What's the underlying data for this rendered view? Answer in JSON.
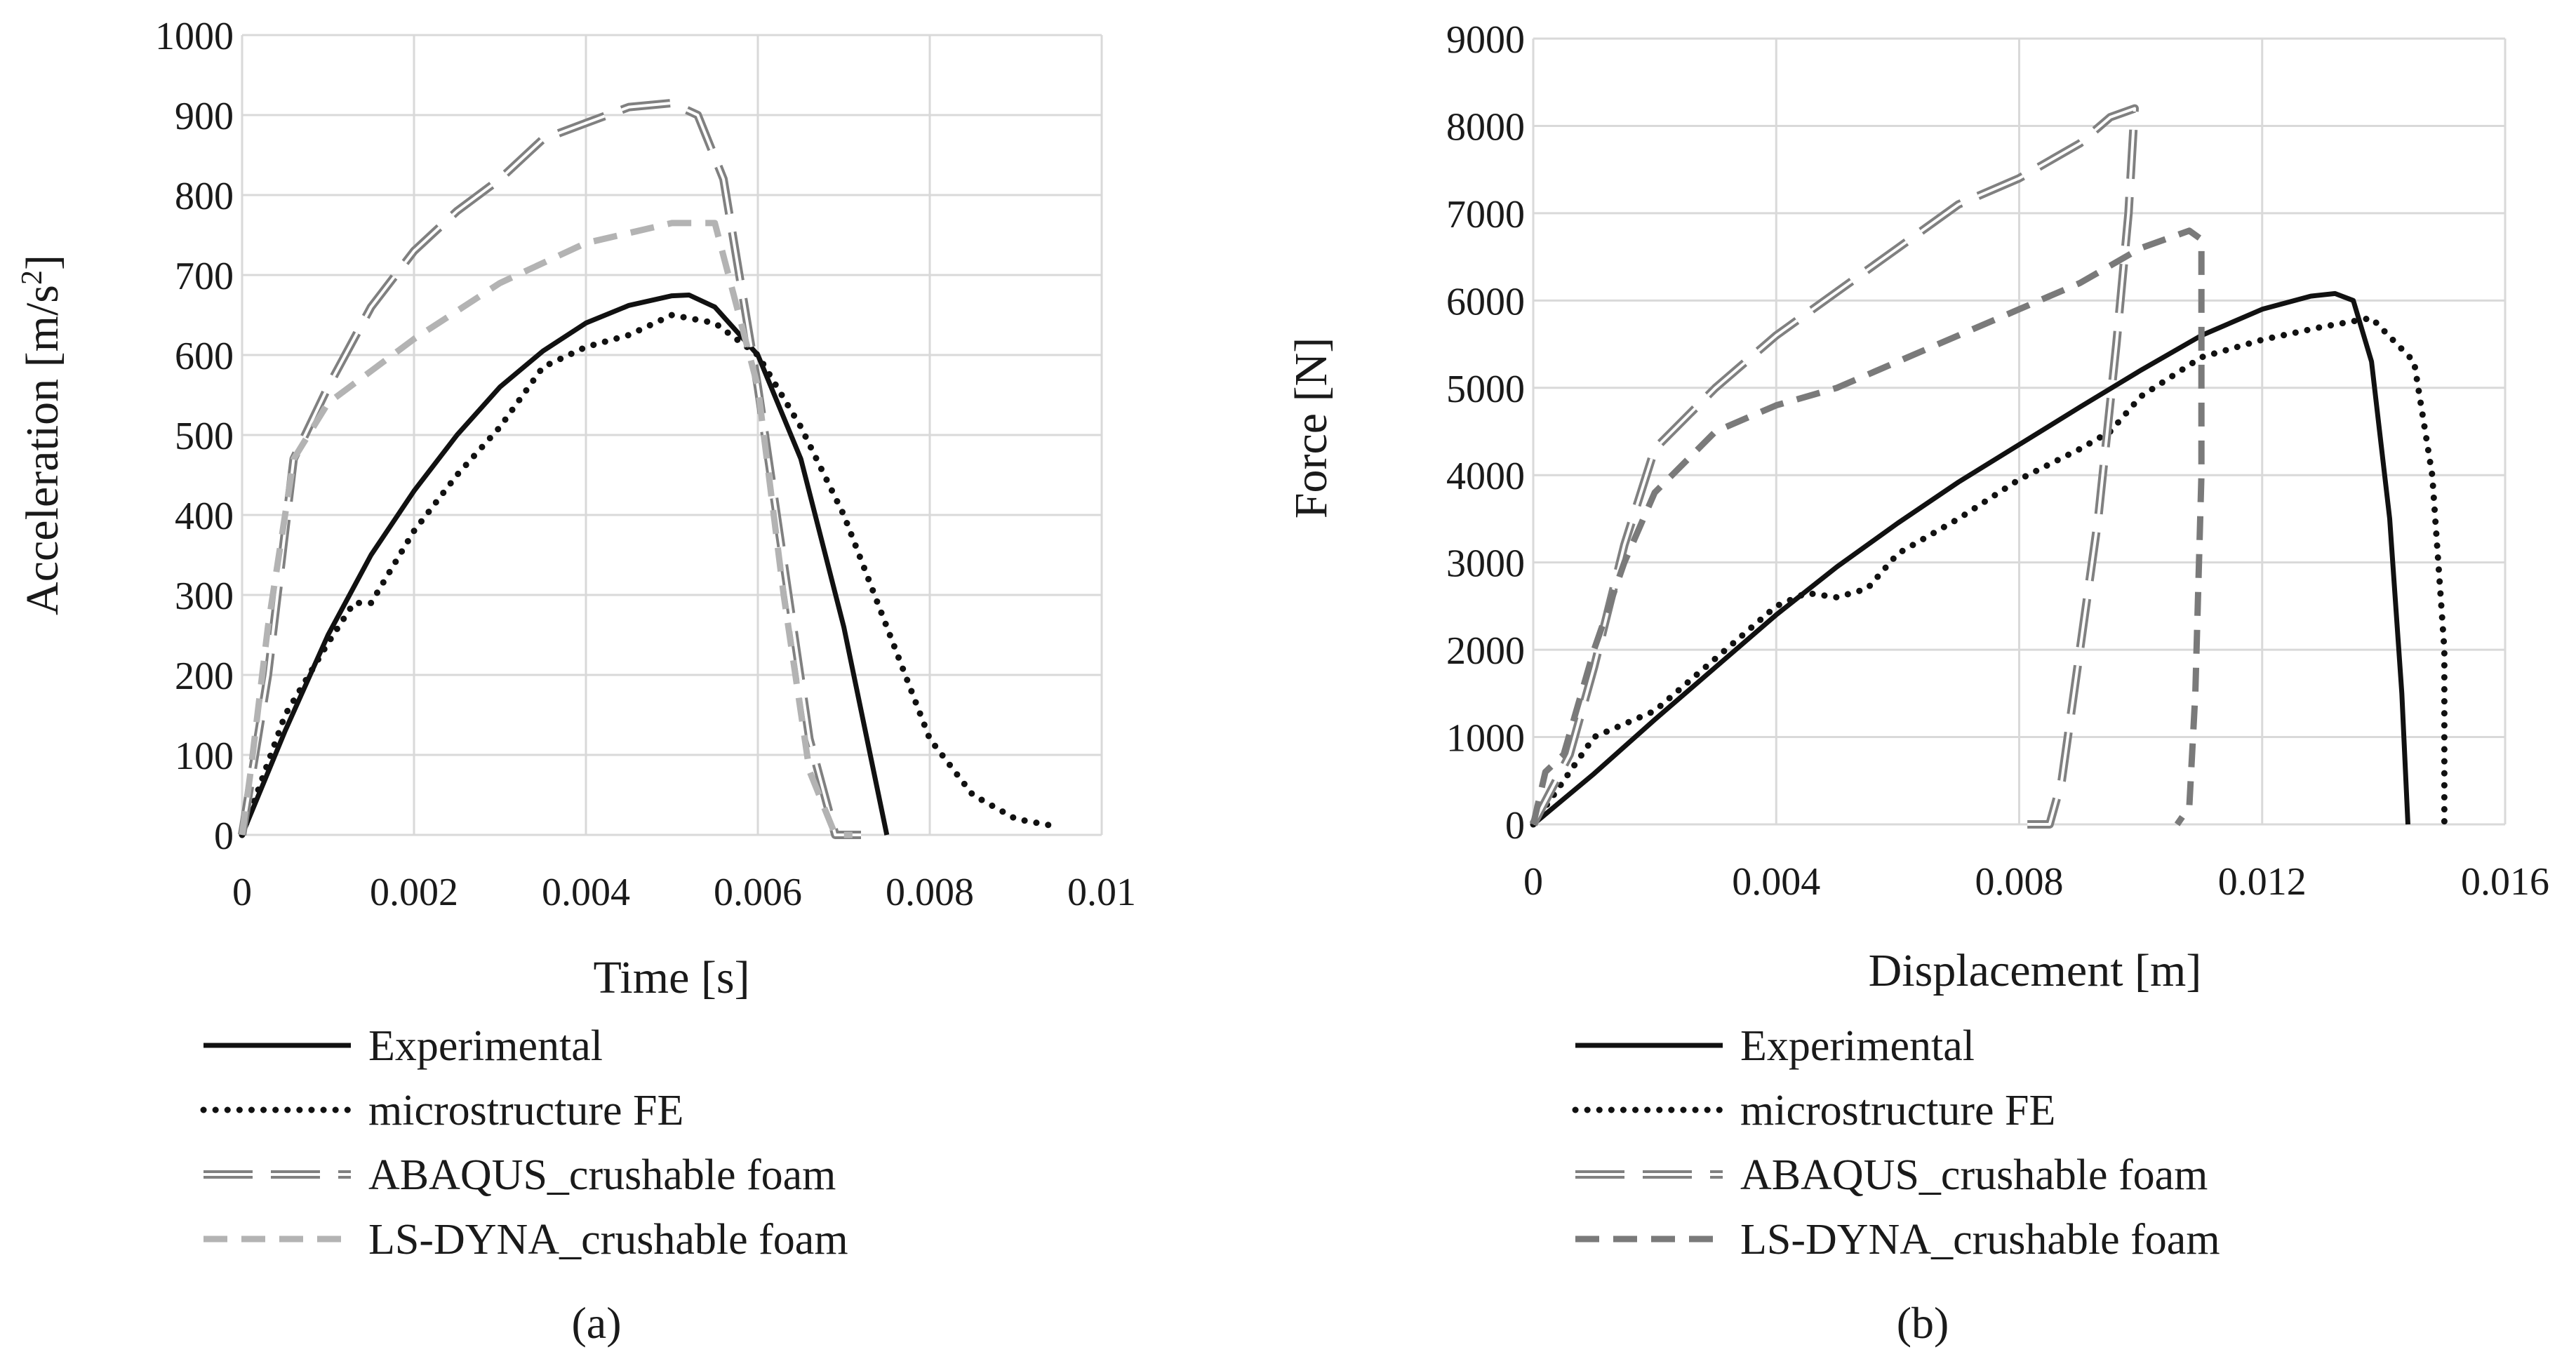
{
  "chart_data": [
    {
      "type": "line",
      "caption": "(a)",
      "xlabel": "Time [s]",
      "ylabel": "Acceleration [m/s²]",
      "ylabel_base": "Acceleration [m/s",
      "ylabel_sup": "2",
      "ylabel_end": "]",
      "xlim": [
        0,
        0.01
      ],
      "ylim": [
        0,
        1000
      ],
      "x_ticks": [
        0,
        0.002,
        0.004,
        0.006,
        0.008,
        0.01
      ],
      "x_tick_labels": [
        "0",
        "0.002",
        "0.004",
        "0.006",
        "0.008",
        "0.01"
      ],
      "y_ticks": [
        0,
        100,
        200,
        300,
        400,
        500,
        600,
        700,
        800,
        900,
        1000
      ],
      "y_tick_labels": [
        "0",
        "100",
        "200",
        "300",
        "400",
        "500",
        "600",
        "700",
        "800",
        "900",
        "1000"
      ],
      "grid": true,
      "legend_position": "bottom",
      "series": [
        {
          "name": "Experimental",
          "style": "solid-black",
          "x": [
            0,
            0.0005,
            0.001,
            0.0015,
            0.002,
            0.0025,
            0.003,
            0.0035,
            0.004,
            0.0045,
            0.005,
            0.0052,
            0.0055,
            0.006,
            0.0065,
            0.007,
            0.0075
          ],
          "y": [
            0,
            130,
            250,
            350,
            430,
            500,
            560,
            605,
            640,
            662,
            674,
            675,
            660,
            600,
            470,
            260,
            0
          ]
        },
        {
          "name": "microstructure FE",
          "style": "dotted-black",
          "x": [
            0,
            0.0005,
            0.001,
            0.0013,
            0.0015,
            0.002,
            0.0025,
            0.003,
            0.0035,
            0.004,
            0.0045,
            0.005,
            0.0055,
            0.006,
            0.0065,
            0.007,
            0.0075,
            0.008,
            0.0085,
            0.009,
            0.0095
          ],
          "y": [
            0,
            150,
            240,
            290,
            290,
            380,
            450,
            510,
            585,
            610,
            625,
            650,
            640,
            600,
            510,
            400,
            260,
            120,
            50,
            20,
            10
          ]
        },
        {
          "name": "ABAQUS_crushable foam",
          "style": "long-dash-gray-double",
          "x": [
            0,
            0.0003,
            0.0006,
            0.001,
            0.0015,
            0.002,
            0.0025,
            0.003,
            0.0035,
            0.004,
            0.0045,
            0.005,
            0.0053,
            0.0056,
            0.006,
            0.0063,
            0.0066,
            0.0069,
            0.0072
          ],
          "y": [
            0,
            200,
            470,
            560,
            660,
            730,
            780,
            820,
            870,
            890,
            910,
            915,
            900,
            820,
            560,
            340,
            120,
            0,
            0
          ]
        },
        {
          "name": "LS-DYNA_crushable foam",
          "style": "dashed-lightgray",
          "x": [
            0,
            0.0001,
            0.0003,
            0.0006,
            0.001,
            0.0015,
            0.002,
            0.003,
            0.004,
            0.005,
            0.0055,
            0.006,
            0.0063,
            0.0066,
            0.0069,
            0.0071
          ],
          "y": [
            0,
            80,
            260,
            470,
            540,
            580,
            620,
            690,
            740,
            765,
            765,
            560,
            300,
            80,
            0,
            0
          ]
        }
      ]
    },
    {
      "type": "line",
      "caption": "(b)",
      "xlabel": "Displacement [m]",
      "ylabel": "Force [N]",
      "xlim": [
        0,
        0.016
      ],
      "ylim": [
        0,
        9000
      ],
      "x_ticks": [
        0,
        0.004,
        0.008,
        0.012,
        0.016
      ],
      "x_tick_labels": [
        "0",
        "0.004",
        "0.008",
        "0.012",
        "0.016"
      ],
      "y_ticks": [
        0,
        1000,
        2000,
        3000,
        4000,
        5000,
        6000,
        7000,
        8000,
        9000
      ],
      "y_tick_labels": [
        "0",
        "1000",
        "2000",
        "3000",
        "4000",
        "5000",
        "6000",
        "7000",
        "8000",
        "9000"
      ],
      "grid": true,
      "legend_position": "bottom",
      "series": [
        {
          "name": "Experimental",
          "style": "solid-black",
          "x": [
            0,
            0.001,
            0.002,
            0.003,
            0.004,
            0.005,
            0.006,
            0.007,
            0.008,
            0.009,
            0.01,
            0.011,
            0.012,
            0.0128,
            0.0132,
            0.0135,
            0.0138,
            0.0141,
            0.0143,
            0.0144
          ],
          "y": [
            0,
            580,
            1200,
            1800,
            2400,
            2950,
            3450,
            3920,
            4350,
            4780,
            5200,
            5600,
            5900,
            6050,
            6080,
            6000,
            5300,
            3500,
            1500,
            0
          ]
        },
        {
          "name": "microstructure FE",
          "style": "dotted-black",
          "x": [
            0,
            0.001,
            0.002,
            0.003,
            0.004,
            0.0045,
            0.005,
            0.0055,
            0.006,
            0.007,
            0.008,
            0.009,
            0.0095,
            0.01,
            0.011,
            0.012,
            0.013,
            0.0138,
            0.0145,
            0.0148,
            0.015,
            0.015
          ],
          "y": [
            0,
            1000,
            1300,
            1900,
            2500,
            2650,
            2600,
            2700,
            3100,
            3500,
            3950,
            4300,
            4500,
            4900,
            5350,
            5550,
            5700,
            5800,
            5300,
            4000,
            2000,
            0
          ]
        },
        {
          "name": "ABAQUS_crushable foam",
          "style": "long-dash-gray-double",
          "x": [
            0,
            0.0003,
            0.0006,
            0.001,
            0.0015,
            0.002,
            0.003,
            0.004,
            0.005,
            0.006,
            0.007,
            0.008,
            0.009,
            0.0095,
            0.0099,
            0.0098,
            0.0096,
            0.0093,
            0.009,
            0.0087,
            0.0085,
            0.008
          ],
          "y": [
            0,
            400,
            800,
            1800,
            3200,
            4300,
            5000,
            5600,
            6100,
            6600,
            7100,
            7400,
            7800,
            8100,
            8200,
            7000,
            5500,
            3500,
            2000,
            500,
            0,
            0
          ]
        },
        {
          "name": "LS-DYNA_crushable foam",
          "style": "dashed-darkgray",
          "x": [
            0,
            0.0002,
            0.0005,
            0.001,
            0.0015,
            0.002,
            0.003,
            0.004,
            0.005,
            0.006,
            0.007,
            0.008,
            0.009,
            0.01,
            0.0108,
            0.011,
            0.011,
            0.0109,
            0.0108,
            0.0106
          ],
          "y": [
            0,
            600,
            800,
            2000,
            3000,
            3800,
            4500,
            4800,
            5000,
            5300,
            5600,
            5900,
            6200,
            6600,
            6800,
            6700,
            4000,
            1500,
            200,
            0
          ]
        }
      ]
    }
  ]
}
